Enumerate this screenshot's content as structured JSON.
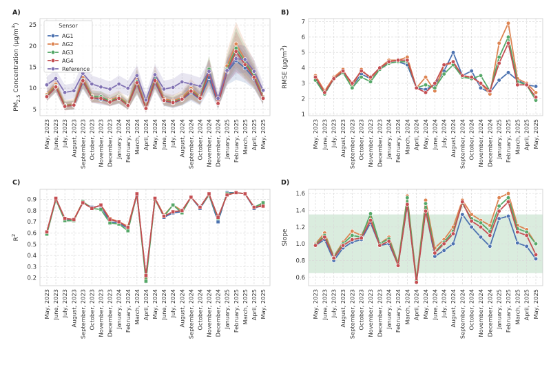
{
  "colors": {
    "AG1": "#4c72b0",
    "AG2": "#dd8452",
    "AG3": "#55a868",
    "AG4": "#c44e52",
    "Reference": "#8172b3",
    "band": "#55a868"
  },
  "months": [
    "May, 2023",
    "June, 2023",
    "July, 2023",
    "August, 2023",
    "September, 2023",
    "October, 2023",
    "November, 2023",
    "December, 2023",
    "January, 2024",
    "February, 2024",
    "March, 2024",
    "April, 2024",
    "May, 2024",
    "June, 2024",
    "July, 2024",
    "August, 2024",
    "September, 2024",
    "October, 2024",
    "November, 2024",
    "December, 2024",
    "January, 2025",
    "February, 2025",
    "March, 2025",
    "April, 2025",
    "May, 2025"
  ],
  "chart_data": [
    {
      "panel": "A)",
      "type": "line",
      "ylabel": "PM2.5 Concentration (µg/m³)",
      "ylabel_main": "PM",
      "ylabel_sub": "2.5",
      "ylabel_rest": " Concentration (µg/m",
      "ylabel_sup": "3",
      "ylabel_end": ")",
      "ylim": [
        3.5,
        26.5
      ],
      "yticks": [
        5,
        10,
        15,
        20,
        25
      ],
      "legend": {
        "title": "Sensor",
        "position": "top-left"
      },
      "series": [
        {
          "name": "AG1",
          "values": [
            8.0,
            10.2,
            5.8,
            5.9,
            11.5,
            7.8,
            7.3,
            6.8,
            7.5,
            6.0,
            11.0,
            5.3,
            11.5,
            7.0,
            6.5,
            7.3,
            9.0,
            7.4,
            12.5,
            6.3,
            13.8,
            16.5,
            14.8,
            12.3,
            7.5
          ],
          "band": [
            1.0,
            1.2,
            1.0,
            1.0,
            1.8,
            1.2,
            1.2,
            1.0,
            1.2,
            1.0,
            2.5,
            1.0,
            2.0,
            1.2,
            1.2,
            1.4,
            2.0,
            1.5,
            3.0,
            1.2,
            3.0,
            4.5,
            3.5,
            2.5,
            1.4
          ]
        },
        {
          "name": "AG2",
          "values": [
            8.5,
            11.0,
            6.0,
            6.3,
            12.5,
            8.2,
            7.8,
            7.2,
            8.0,
            6.3,
            12.0,
            5.6,
            12.8,
            7.5,
            7.0,
            7.8,
            10.0,
            8.0,
            14.0,
            6.8,
            15.3,
            20.5,
            16.8,
            13.5,
            8.0
          ],
          "band": [
            1.2,
            1.5,
            1.2,
            1.2,
            2.0,
            1.4,
            1.4,
            1.2,
            1.5,
            1.2,
            3.0,
            1.0,
            2.5,
            1.4,
            1.4,
            1.6,
            2.2,
            1.8,
            3.5,
            1.4,
            3.5,
            5.2,
            4.0,
            3.0,
            1.6
          ]
        },
        {
          "name": "AG3",
          "values": [
            8.2,
            10.5,
            5.9,
            6.1,
            12.0,
            8.0,
            8.0,
            6.9,
            7.8,
            6.1,
            11.6,
            5.4,
            12.2,
            7.2,
            6.8,
            7.5,
            9.5,
            7.8,
            14.5,
            6.5,
            14.5,
            19.5,
            16.2,
            13.0,
            7.8
          ],
          "band": [
            1.1,
            1.3,
            1.1,
            1.1,
            1.9,
            1.3,
            1.3,
            1.1,
            1.3,
            1.1,
            2.8,
            1.0,
            2.2,
            1.3,
            1.3,
            1.5,
            2.1,
            1.6,
            3.2,
            1.3,
            3.2,
            5.0,
            3.8,
            2.8,
            1.5
          ]
        },
        {
          "name": "AG4",
          "values": [
            8.0,
            10.3,
            5.7,
            6.0,
            11.8,
            7.7,
            7.6,
            6.7,
            7.6,
            5.9,
            11.3,
            5.2,
            11.8,
            7.1,
            6.6,
            7.4,
            9.3,
            7.6,
            13.8,
            6.4,
            14.0,
            18.7,
            15.6,
            12.6,
            7.6
          ],
          "band": [
            1.1,
            1.3,
            1.0,
            1.0,
            1.8,
            1.2,
            1.2,
            1.0,
            1.2,
            1.0,
            2.6,
            1.0,
            2.1,
            1.2,
            1.2,
            1.4,
            2.0,
            1.5,
            3.1,
            1.2,
            3.1,
            4.8,
            3.6,
            2.6,
            1.4
          ]
        },
        {
          "name": "Reference",
          "values": [
            10.8,
            12.3,
            9.0,
            9.4,
            13.5,
            11.0,
            10.3,
            9.8,
            11.0,
            10.0,
            13.0,
            7.2,
            13.2,
            9.8,
            10.2,
            11.5,
            11.0,
            10.5,
            14.0,
            7.6,
            14.2,
            17.0,
            16.8,
            14.0,
            9.5
          ],
          "band": [
            2.0,
            2.0,
            1.8,
            1.8,
            2.5,
            2.0,
            2.0,
            1.8,
            2.0,
            1.8,
            2.5,
            1.5,
            2.5,
            2.0,
            2.0,
            2.2,
            2.2,
            2.0,
            2.8,
            1.5,
            2.8,
            3.5,
            3.2,
            2.8,
            1.8
          ]
        }
      ]
    },
    {
      "panel": "B)",
      "type": "line",
      "ylabel": "RMSE (µg/m³)",
      "ylabel_main": "RMSE (µg/m",
      "ylabel_sup": "3",
      "ylabel_end": ")",
      "ylim": [
        0.9,
        7.2
      ],
      "yticks": [
        1,
        2,
        3,
        4,
        5,
        6,
        7
      ],
      "series": [
        {
          "name": "AG1",
          "values": [
            3.3,
            2.3,
            3.3,
            3.7,
            2.8,
            3.6,
            3.3,
            3.9,
            4.3,
            4.4,
            4.2,
            2.7,
            2.6,
            2.9,
            3.8,
            5.0,
            3.5,
            3.8,
            2.7,
            2.4,
            3.2,
            3.7,
            3.2,
            2.9,
            2.8
          ]
        },
        {
          "name": "AG2",
          "values": [
            3.5,
            2.5,
            3.4,
            3.9,
            2.8,
            3.9,
            3.3,
            4.0,
            4.5,
            4.5,
            4.7,
            2.7,
            3.4,
            2.5,
            4.2,
            4.3,
            3.4,
            3.4,
            3.0,
            2.3,
            5.6,
            6.9,
            3.3,
            3.0,
            2.4
          ]
        },
        {
          "name": "AG3",
          "values": [
            3.2,
            2.3,
            3.3,
            3.7,
            2.7,
            3.4,
            3.1,
            3.9,
            4.3,
            4.4,
            4.4,
            2.7,
            2.9,
            2.7,
            3.6,
            4.2,
            3.4,
            3.3,
            3.5,
            2.5,
            4.7,
            6.0,
            3.1,
            2.9,
            1.9
          ]
        },
        {
          "name": "AG4",
          "values": [
            3.4,
            2.4,
            3.3,
            3.8,
            3.0,
            3.8,
            3.4,
            4.0,
            4.4,
            4.5,
            4.5,
            2.7,
            2.4,
            3.0,
            4.2,
            4.4,
            3.5,
            3.4,
            3.0,
            2.5,
            4.3,
            5.6,
            2.9,
            2.9,
            2.1
          ]
        }
      ]
    },
    {
      "panel": "C)",
      "type": "line",
      "ylabel": "R²",
      "ylabel_main": "R",
      "ylabel_sup": "2",
      "ylim": [
        0.13,
        0.99
      ],
      "yticks": [
        0.2,
        0.3,
        0.4,
        0.5,
        0.6,
        0.7,
        0.8,
        0.9
      ],
      "series": [
        {
          "name": "AG1",
          "values": [
            0.6,
            0.9,
            0.72,
            0.72,
            0.87,
            0.83,
            0.84,
            0.7,
            0.69,
            0.64,
            0.94,
            0.21,
            0.91,
            0.74,
            0.78,
            0.79,
            0.92,
            0.82,
            0.94,
            0.7,
            0.96,
            0.96,
            0.95,
            0.82,
            0.85
          ]
        },
        {
          "name": "AG2",
          "values": [
            0.61,
            0.9,
            0.73,
            0.72,
            0.88,
            0.82,
            0.85,
            0.73,
            0.7,
            0.66,
            0.95,
            0.2,
            0.91,
            0.76,
            0.85,
            0.8,
            0.92,
            0.83,
            0.94,
            0.74,
            0.94,
            0.96,
            0.95,
            0.83,
            0.86
          ]
        },
        {
          "name": "AG3",
          "values": [
            0.59,
            0.9,
            0.71,
            0.71,
            0.88,
            0.82,
            0.81,
            0.69,
            0.68,
            0.62,
            0.95,
            0.17,
            0.9,
            0.75,
            0.85,
            0.78,
            0.92,
            0.83,
            0.94,
            0.73,
            0.95,
            0.96,
            0.95,
            0.83,
            0.87
          ]
        },
        {
          "name": "AG4",
          "values": [
            0.61,
            0.91,
            0.73,
            0.72,
            0.87,
            0.82,
            0.85,
            0.72,
            0.7,
            0.65,
            0.95,
            0.22,
            0.91,
            0.75,
            0.79,
            0.8,
            0.92,
            0.83,
            0.95,
            0.74,
            0.94,
            0.96,
            0.95,
            0.83,
            0.84
          ]
        }
      ]
    },
    {
      "panel": "D)",
      "type": "line",
      "ylabel": "Slope",
      "ylim": [
        0.5,
        1.65
      ],
      "yticks": [
        0.6,
        0.8,
        1.0,
        1.2,
        1.4,
        1.6
      ],
      "reference_band": [
        0.65,
        1.35
      ],
      "series": [
        {
          "name": "AG1",
          "values": [
            0.98,
            1.05,
            0.8,
            0.95,
            1.02,
            1.05,
            1.25,
            0.98,
            1.0,
            0.75,
            1.46,
            0.55,
            1.4,
            0.85,
            0.92,
            1.0,
            1.35,
            1.2,
            1.08,
            0.97,
            1.3,
            1.33,
            1.01,
            0.97,
            0.82
          ]
        },
        {
          "name": "AG2",
          "values": [
            1.0,
            1.13,
            0.85,
            1.02,
            1.15,
            1.1,
            1.32,
            1.0,
            1.08,
            0.77,
            1.57,
            0.57,
            1.52,
            0.95,
            1.05,
            1.2,
            1.52,
            1.35,
            1.28,
            1.22,
            1.55,
            1.6,
            1.22,
            1.17,
            1.0
          ]
        },
        {
          "name": "AG3",
          "values": [
            0.99,
            1.1,
            0.84,
            1.0,
            1.1,
            1.08,
            1.36,
            1.0,
            1.06,
            0.76,
            1.55,
            0.56,
            1.48,
            0.9,
            1.02,
            1.15,
            1.48,
            1.3,
            1.25,
            1.15,
            1.45,
            1.55,
            1.18,
            1.14,
            1.0
          ]
        },
        {
          "name": "AG4",
          "values": [
            0.98,
            1.08,
            0.83,
            0.98,
            1.05,
            1.07,
            1.28,
            0.98,
            1.03,
            0.74,
            1.47,
            0.54,
            1.39,
            0.89,
            1.0,
            1.12,
            1.5,
            1.27,
            1.2,
            1.1,
            1.39,
            1.5,
            1.14,
            1.1,
            0.87
          ]
        }
      ]
    }
  ]
}
